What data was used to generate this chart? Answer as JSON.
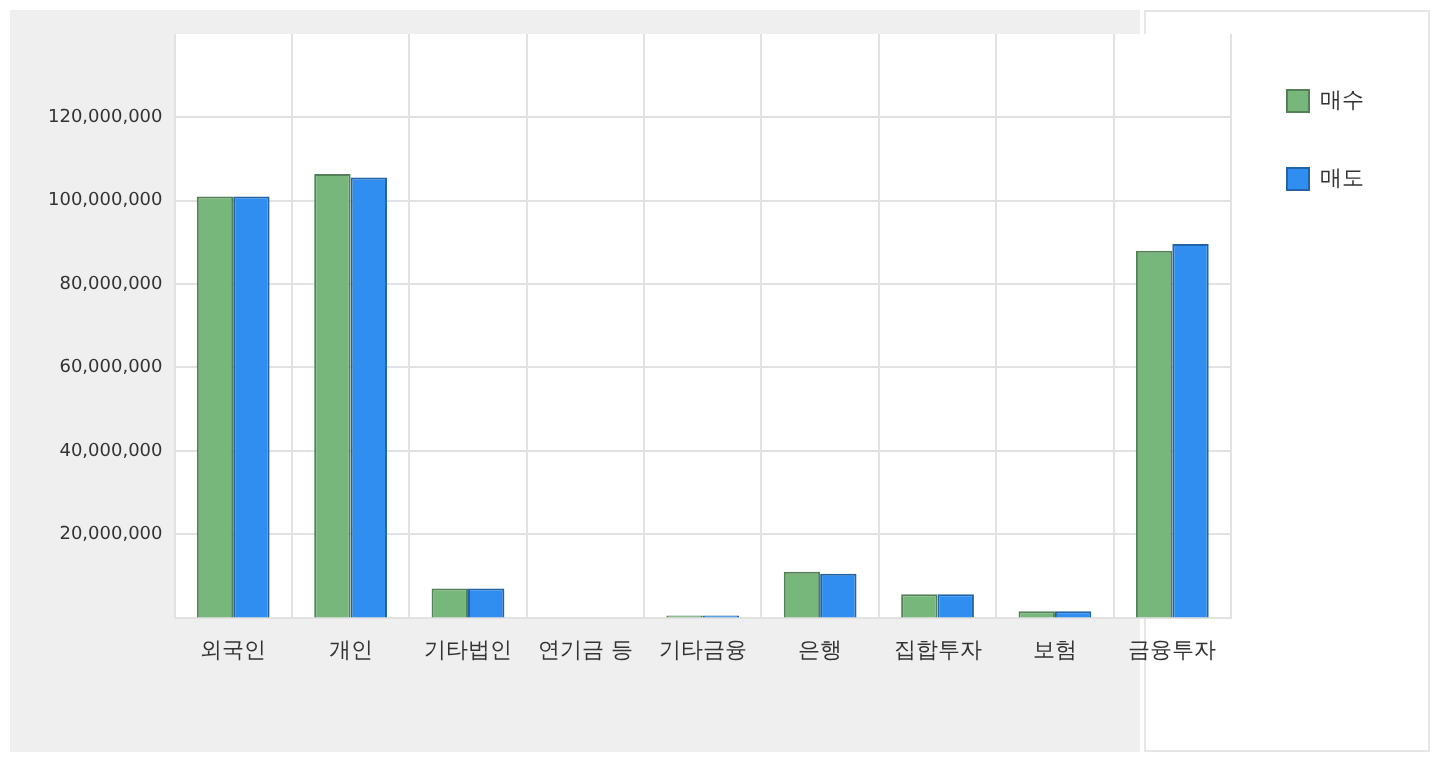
{
  "chart_data": {
    "type": "bar",
    "categories": [
      "외국인",
      "개인",
      "기타법인",
      "연기금 등",
      "기타금융",
      "은행",
      "집합투자",
      "보험",
      "금융투자"
    ],
    "series": [
      {
        "name": "매수",
        "color": "#78b77c",
        "values": [
          101000000,
          106400000,
          7000000,
          0,
          500000,
          11000000,
          5600000,
          1500000,
          88000000
        ]
      },
      {
        "name": "매도",
        "color": "#2f8ef0",
        "values": [
          101000000,
          105600000,
          7000000,
          0,
          500000,
          10500000,
          5600000,
          1500000,
          89600000
        ]
      }
    ],
    "ylim": [
      0,
      140000000
    ],
    "yticks": [
      {
        "value": 20000000,
        "label": "20,000,000"
      },
      {
        "value": 40000000,
        "label": "40,000,000"
      },
      {
        "value": 60000000,
        "label": "60,000,000"
      },
      {
        "value": 80000000,
        "label": "80,000,000"
      },
      {
        "value": 100000000,
        "label": "100,000,000"
      },
      {
        "value": 120000000,
        "label": "120,000,000"
      }
    ],
    "grid": true,
    "legend": "top right"
  }
}
